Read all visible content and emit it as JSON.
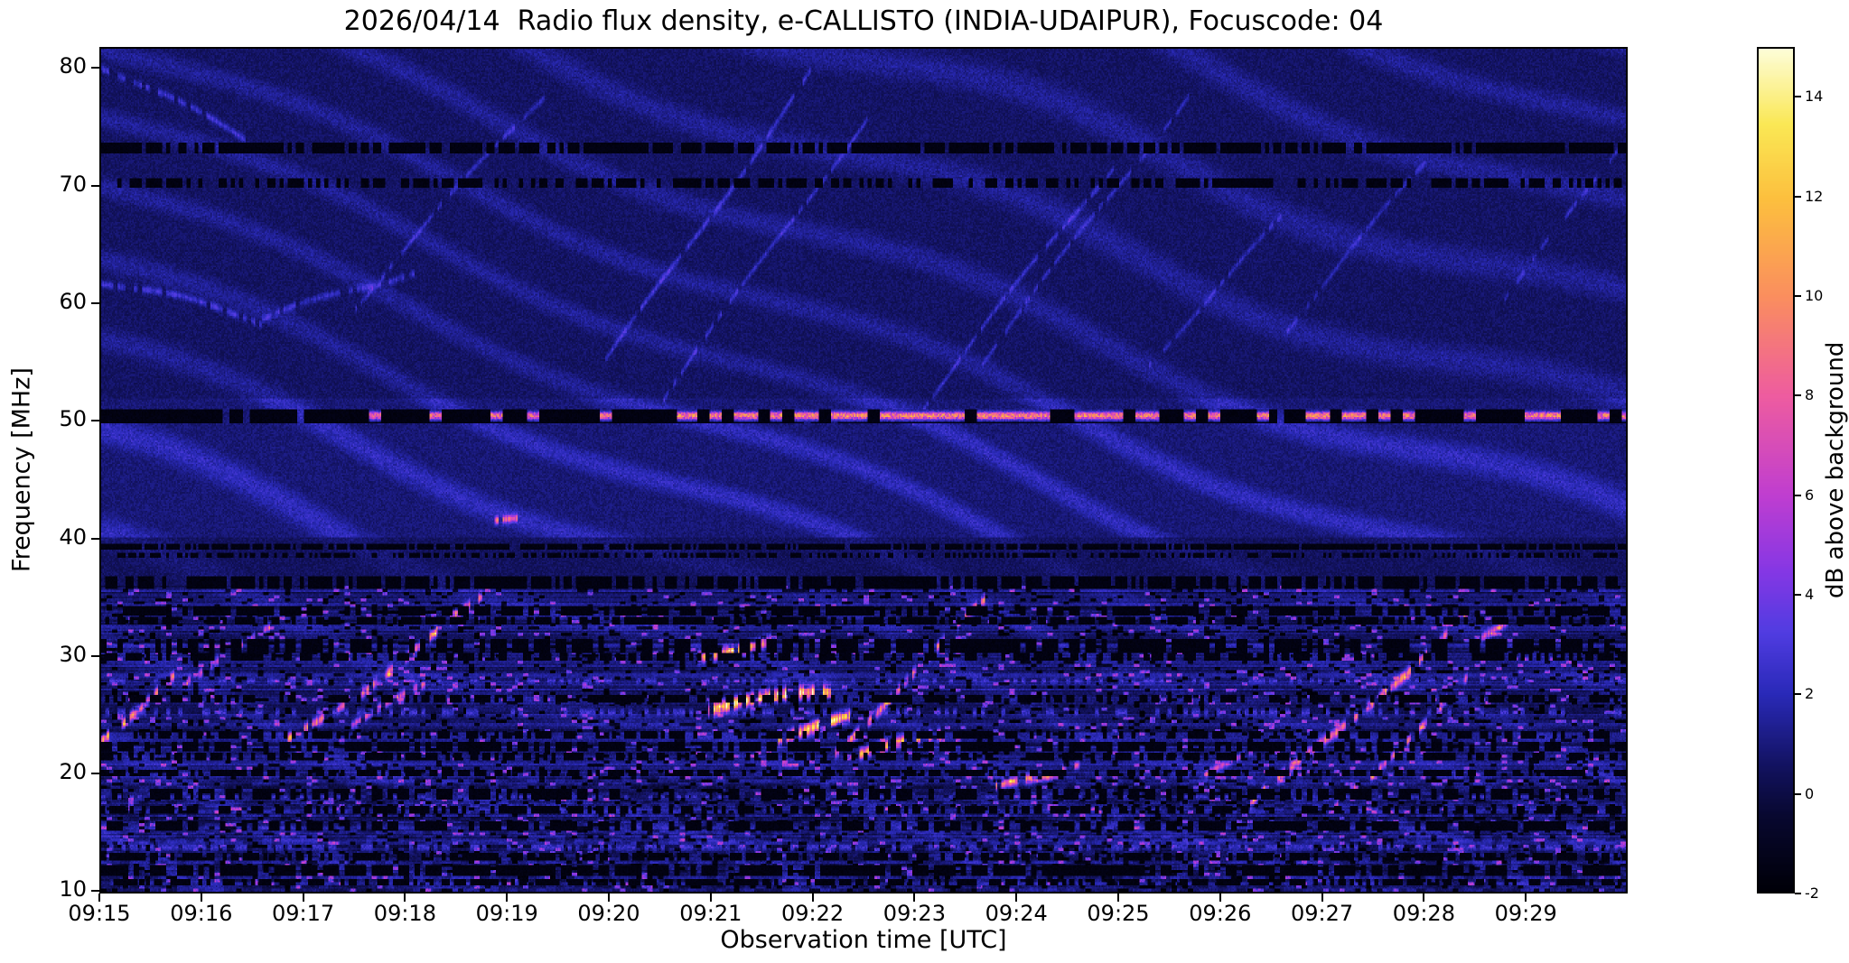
{
  "chart_data": {
    "type": "heatmap",
    "title": "2026/04/14  Radio flux density, e-CALLISTO (INDIA-UDAIPUR), Focuscode: 04",
    "xlabel": "Observation time [UTC]",
    "ylabel": "Frequency [MHz]",
    "colorbar_label": "dB above background",
    "x_start_utc": "09:15",
    "x_end_utc": "09:30",
    "x_duration_s": 900,
    "x_ticks": [
      "09:15",
      "09:16",
      "09:17",
      "09:18",
      "09:19",
      "09:20",
      "09:21",
      "09:22",
      "09:23",
      "09:24",
      "09:25",
      "09:26",
      "09:27",
      "09:28",
      "09:29"
    ],
    "y_min_mhz": 9.8,
    "y_max_mhz": 81.8,
    "y_ticks": [
      10,
      20,
      30,
      40,
      50,
      60,
      70,
      80
    ],
    "v_min_db": -2,
    "v_max_db": 15,
    "colorbar_ticks": [
      -2,
      0,
      2,
      4,
      6,
      8,
      10,
      12,
      14
    ],
    "colormap_stops": [
      {
        "v": -2.0,
        "rgb": [
          0,
          0,
          8
        ]
      },
      {
        "v": -0.5,
        "rgb": [
          8,
          8,
          48
        ]
      },
      {
        "v": 0.5,
        "rgb": [
          18,
          18,
          95
        ]
      },
      {
        "v": 2.0,
        "rgb": [
          42,
          42,
          185
        ]
      },
      {
        "v": 3.2,
        "rgb": [
          80,
          60,
          225
        ]
      },
      {
        "v": 4.5,
        "rgb": [
          135,
          55,
          228
        ]
      },
      {
        "v": 6.0,
        "rgb": [
          192,
          62,
          208
        ]
      },
      {
        "v": 8.0,
        "rgb": [
          238,
          92,
          160
        ]
      },
      {
        "v": 10.0,
        "rgb": [
          250,
          142,
          95
        ]
      },
      {
        "v": 12.0,
        "rgb": [
          252,
          192,
          62
        ]
      },
      {
        "v": 13.5,
        "rgb": [
          250,
          232,
          85
        ]
      },
      {
        "v": 15.0,
        "rgb": [
          253,
          253,
          215
        ]
      }
    ],
    "rfi_lines": [
      {
        "f": 73.3,
        "w": 0.45,
        "type": "dark",
        "duty": 0.8,
        "dash": 3
      },
      {
        "f": 70.3,
        "w": 0.4,
        "type": "dark",
        "duty": 0.6,
        "dash": 3
      },
      {
        "f": 50.4,
        "w": 0.62,
        "type": "dark",
        "duty": 0.97,
        "dash": 5
      },
      {
        "f": 50.45,
        "w": 0.5,
        "type": "bright",
        "amp": 11,
        "duty": 0.55,
        "dash": 9,
        "t0": 340
      },
      {
        "f": 50.45,
        "w": 0.5,
        "type": "bright",
        "amp": 10,
        "duty": 0.1,
        "dash": 9,
        "t1": 340
      },
      {
        "f": 39.3,
        "w": 0.28,
        "type": "dark",
        "duty": 0.85,
        "dash": 2
      },
      {
        "f": 38.5,
        "w": 0.2,
        "type": "dark",
        "duty": 0.5,
        "dash": 2
      },
      {
        "f": 36.2,
        "w": 0.5,
        "type": "dark",
        "duty": 0.75,
        "dash": 3
      },
      {
        "f": 33.8,
        "w": 0.4,
        "type": "dark",
        "duty": 0.7,
        "dash": 4
      },
      {
        "f": 32.9,
        "w": 0.3,
        "type": "dark",
        "duty": 0.6,
        "dash": 3
      },
      {
        "f": 30.8,
        "w": 0.55,
        "type": "dark",
        "duty": 0.65,
        "dash": 4
      },
      {
        "f": 29.9,
        "w": 0.3,
        "type": "dark",
        "duty": 0.55,
        "dash": 3
      },
      {
        "f": 27.8,
        "w": 0.4,
        "type": "bright",
        "amp": 3.2,
        "duty": 0.35,
        "dash": 3
      },
      {
        "f": 26.3,
        "w": 0.35,
        "type": "dark",
        "duty": 0.55,
        "dash": 3
      },
      {
        "f": 25.1,
        "w": 0.55,
        "type": "bright",
        "amp": 3.0,
        "duty": 0.4,
        "dash": 3
      },
      {
        "f": 23.2,
        "w": 0.3,
        "type": "dark",
        "duty": 0.5,
        "dash": 3
      },
      {
        "f": 22.2,
        "w": 0.45,
        "type": "dark",
        "duty": 0.65,
        "dash": 4
      },
      {
        "f": 21.3,
        "w": 0.35,
        "type": "dark",
        "duty": 0.55,
        "dash": 3
      },
      {
        "f": 19.9,
        "w": 0.3,
        "type": "dark",
        "duty": 0.6,
        "dash": 3
      },
      {
        "f": 18.1,
        "w": 0.45,
        "type": "dark",
        "duty": 0.6,
        "dash": 4
      },
      {
        "f": 17.9,
        "w": 0.3,
        "type": "bright",
        "amp": 3.0,
        "duty": 0.2,
        "dash": 3
      },
      {
        "f": 16.8,
        "w": 0.35,
        "type": "dark",
        "duty": 0.55,
        "dash": 3
      },
      {
        "f": 15.4,
        "w": 0.4,
        "type": "dark",
        "duty": 0.6,
        "dash": 4
      },
      {
        "f": 13.6,
        "w": 0.5,
        "type": "bright",
        "amp": 2.8,
        "duty": 0.45,
        "dash": 3
      },
      {
        "f": 12.8,
        "w": 0.3,
        "type": "dark",
        "duty": 0.6,
        "dash": 3
      },
      {
        "f": 11.6,
        "w": 0.5,
        "type": "dark",
        "duty": 0.75,
        "dash": 4
      },
      {
        "f": 10.6,
        "w": 0.3,
        "type": "dark",
        "duty": 0.6,
        "dash": 3
      }
    ],
    "bursts": [
      {
        "t0": 0,
        "t1": 45,
        "f0": 23,
        "f1": 28.5,
        "amp": 9,
        "w": 0.7,
        "duty": 0.6
      },
      {
        "t0": 50,
        "t1": 100,
        "f0": 28,
        "f1": 32,
        "amp": 5,
        "w": 0.6,
        "duty": 0.5
      },
      {
        "t0": 105,
        "t1": 228,
        "f0": 22,
        "f1": 35,
        "amp": 8,
        "w": 0.7,
        "duty": 0.55
      },
      {
        "t0": 148,
        "t1": 195,
        "f0": 24,
        "f1": 27.5,
        "amp": 6,
        "w": 0.6,
        "duty": 0.5
      },
      {
        "t0": 232,
        "t1": 246,
        "f0": 41.3,
        "f1": 41.8,
        "amp": 7,
        "w": 0.5,
        "duty": 0.8
      },
      {
        "t0": 352,
        "t1": 396,
        "f0": 30,
        "f1": 31.5,
        "amp": 9,
        "w": 0.8,
        "duty": 0.75
      },
      {
        "t0": 358,
        "t1": 432,
        "f0": 25.5,
        "f1": 26.8,
        "amp": 13,
        "w": 0.9,
        "duty": 0.8
      },
      {
        "t0": 395,
        "t1": 442,
        "f0": 23,
        "f1": 24.5,
        "amp": 13,
        "w": 0.8,
        "duty": 0.8
      },
      {
        "t0": 420,
        "t1": 522,
        "f0": 20,
        "f1": 34.5,
        "amp": 8,
        "w": 0.7,
        "duty": 0.5
      },
      {
        "t0": 445,
        "t1": 498,
        "f0": 21.5,
        "f1": 23,
        "amp": 10,
        "w": 0.7,
        "duty": 0.6
      },
      {
        "t0": 528,
        "t1": 562,
        "f0": 18.5,
        "f1": 19.5,
        "amp": 9,
        "w": 0.6,
        "duty": 0.7
      },
      {
        "t0": 560,
        "t1": 578,
        "f0": 20.4,
        "f1": 21,
        "amp": 6,
        "w": 0.5,
        "duty": 0.6
      },
      {
        "t0": 652,
        "t1": 682,
        "f0": 19.5,
        "f1": 22,
        "amp": 5,
        "w": 0.5,
        "duty": 0.5
      },
      {
        "t0": 678,
        "t1": 812,
        "f0": 17,
        "f1": 34,
        "amp": 8,
        "w": 0.7,
        "duty": 0.55
      },
      {
        "t0": 728,
        "t1": 822,
        "f0": 17,
        "f1": 30,
        "amp": 7,
        "w": 0.6,
        "duty": 0.5
      },
      {
        "t0": 815,
        "t1": 838,
        "f0": 31.5,
        "f1": 34,
        "amp": 6,
        "w": 0.6,
        "duty": 0.55
      }
    ],
    "streaks": [
      {
        "t0": 0,
        "t1": 85,
        "f0": 80.5,
        "f1": 74,
        "amp": 2.2,
        "w": 0.5,
        "duty": 0.8
      },
      {
        "t0": 0,
        "t1": 95,
        "f0": 62,
        "f1": 58.5,
        "amp": 2.2,
        "w": 0.5,
        "duty": 0.8
      },
      {
        "t0": 95,
        "t1": 185,
        "f0": 58.5,
        "f1": 63,
        "amp": 1.8,
        "w": 0.5,
        "duty": 0.8
      },
      {
        "t0": 150,
        "t1": 262,
        "f0": 60,
        "f1": 78,
        "amp": 1.7,
        "w": 0.45,
        "duty": 0.75
      },
      {
        "t0": 298,
        "t1": 420,
        "f0": 55,
        "f1": 80,
        "amp": 2.0,
        "w": 0.5,
        "duty": 0.8
      },
      {
        "t0": 332,
        "t1": 452,
        "f0": 52,
        "f1": 76,
        "amp": 1.8,
        "w": 0.45,
        "duty": 0.75
      },
      {
        "t0": 478,
        "t1": 598,
        "f0": 50,
        "f1": 72,
        "amp": 1.8,
        "w": 0.45,
        "duty": 0.75
      },
      {
        "t0": 520,
        "t1": 642,
        "f0": 55,
        "f1": 78,
        "amp": 1.6,
        "w": 0.45,
        "duty": 0.7
      },
      {
        "t0": 618,
        "t1": 702,
        "f0": 55,
        "f1": 68,
        "amp": 1.6,
        "w": 0.45,
        "duty": 0.7
      },
      {
        "t0": 700,
        "t1": 782,
        "f0": 58,
        "f1": 72,
        "amp": 1.5,
        "w": 0.45,
        "duty": 0.7
      },
      {
        "t0": 828,
        "t1": 898,
        "f0": 60,
        "f1": 74,
        "amp": 1.6,
        "w": 0.45,
        "duty": 0.7
      }
    ],
    "background_level_db": 0.5,
    "legend": "none",
    "grid": false
  }
}
